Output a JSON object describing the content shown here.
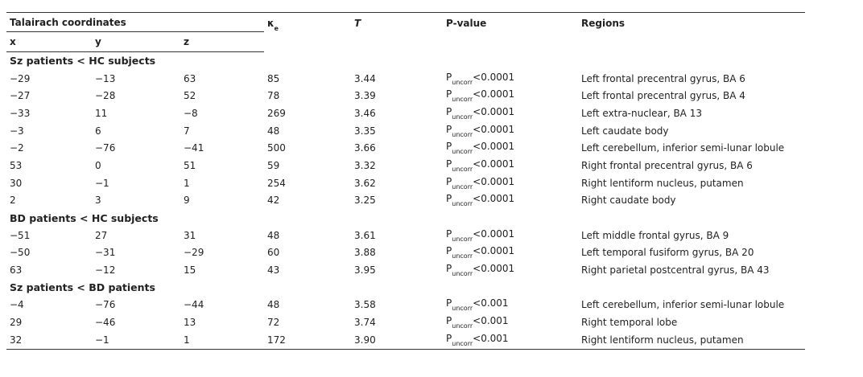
{
  "header": {
    "coords": "Talairach coordinates",
    "x": "x",
    "y": "y",
    "z": "z",
    "kappa": "κ",
    "kappa_sub": "e",
    "t": "T",
    "p": "P-value",
    "regions": "Regions"
  },
  "sections": [
    {
      "title": "Sz patients < HC subjects",
      "rows": [
        {
          "x": "−29",
          "y": "−13",
          "z": "63",
          "k": "85",
          "t": "3.44",
          "p": "P",
          "p_sub": "uncorr",
          "p_rel": "<0.0001",
          "region": "Left frontal precentral gyrus, BA 6"
        },
        {
          "x": "−27",
          "y": "−28",
          "z": "52",
          "k": "78",
          "t": "3.39",
          "p": "P",
          "p_sub": "uncorr",
          "p_rel": "<0.0001",
          "region": "Left frontal precentral gyrus, BA 4"
        },
        {
          "x": "−33",
          "y": "11",
          "z": "−8",
          "k": "269",
          "t": "3.46",
          "p": "P",
          "p_sub": "uncorr",
          "p_rel": "<0.0001",
          "region": "Left extra-nuclear, BA 13"
        },
        {
          "x": "−3",
          "y": "6",
          "z": "7",
          "k": "48",
          "t": "3.35",
          "p": "P",
          "p_sub": "uncorr",
          "p_rel": "<0.0001",
          "region": "Left caudate body"
        },
        {
          "x": "−2",
          "y": "−76",
          "z": "−41",
          "k": "500",
          "t": "3.66",
          "p": "P",
          "p_sub": "uncorr",
          "p_rel": "<0.0001",
          "region": "Left cerebellum, inferior semi-lunar lobule"
        },
        {
          "x": "53",
          "y": "0",
          "z": "51",
          "k": "59",
          "t": "3.32",
          "p": "P",
          "p_sub": "uncorr",
          "p_rel": "<0.0001",
          "region": "Right frontal precentral gyrus, BA 6"
        },
        {
          "x": "30",
          "y": "−1",
          "z": "1",
          "k": "254",
          "t": "3.62",
          "p": "P",
          "p_sub": "uncorr",
          "p_rel": "<0.0001",
          "region": "Right lentiform nucleus, putamen"
        },
        {
          "x": "2",
          "y": "3",
          "z": "9",
          "k": "42",
          "t": "3.25",
          "p": "P",
          "p_sub": "uncorr",
          "p_rel": "<0.0001",
          "region": "Right caudate body"
        }
      ]
    },
    {
      "title": "BD patients < HC subjects",
      "rows": [
        {
          "x": "−51",
          "y": "27",
          "z": "31",
          "k": "48",
          "t": "3.61",
          "p": "P",
          "p_sub": "uncorr",
          "p_rel": "<0.0001",
          "region": "Left middle frontal gyrus, BA 9"
        },
        {
          "x": "−50",
          "y": "−31",
          "z": "−29",
          "k": "60",
          "t": "3.88",
          "p": "P",
          "p_sub": "uncorr",
          "p_rel": "<0.0001",
          "region": "Left temporal fusiform gyrus, BA 20"
        },
        {
          "x": "63",
          "y": "−12",
          "z": "15",
          "k": "43",
          "t": "3.95",
          "p": "P",
          "p_sub": "uncorr",
          "p_rel": "<0.0001",
          "region": "Right parietal postcentral gyrus, BA 43"
        }
      ]
    },
    {
      "title": "Sz patients < BD patients",
      "rows": [
        {
          "x": "−4",
          "y": "−76",
          "z": "−44",
          "k": "48",
          "t": "3.58",
          "p": "P",
          "p_sub": "uncorr",
          "p_rel": "<0.001",
          "region": "Left cerebellum, inferior semi-lunar lobule"
        },
        {
          "x": "29",
          "y": "−46",
          "z": "13",
          "k": "72",
          "t": "3.74",
          "p": "P",
          "p_sub": "uncorr",
          "p_rel": "<0.001",
          "region": "Right temporal lobe"
        },
        {
          "x": "32",
          "y": "−1",
          "z": "1",
          "k": "172",
          "t": "3.90",
          "p": "P",
          "p_sub": "uncorr",
          "p_rel": "<0.001",
          "region": "Right lentiform nucleus, putamen"
        }
      ]
    }
  ]
}
